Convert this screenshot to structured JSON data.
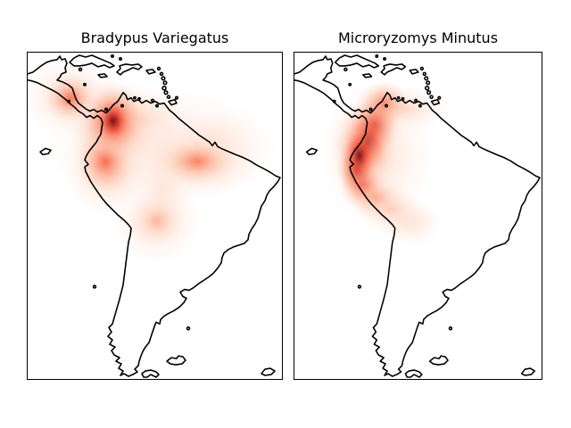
{
  "figure": {
    "background": "#ffffff",
    "subplots": [
      {
        "title": "Bradypus Variegatus"
      },
      {
        "title": "Microryzomys Minutus"
      }
    ]
  },
  "chart_data": [
    {
      "type": "heatmap",
      "title": "Bradypus Variegatus",
      "subtitle": "kernel density estimate of species distribution",
      "colormap": "Reds",
      "region": "Central and South America coastline basemap",
      "extent": {
        "lon": [
          -94.8,
          -34.2
        ],
        "lat": [
          -56.05,
          23.55
        ]
      },
      "xticks": [],
      "yticks": [],
      "legend": "none",
      "density_peaks": [
        {
          "lon": -62.9,
          "lat": 0.8,
          "intensity": 0.1,
          "sx": 16.0,
          "sy": 8.0,
          "note": "broad pale wash over northern South America"
        },
        {
          "lon": -51.2,
          "lat": 1.9,
          "intensity": 0.12,
          "sx": 7.0,
          "sy": 4.5,
          "note": "pale Guianas extension"
        },
        {
          "lon": -68.2,
          "lat": 7.3,
          "intensity": 0.16,
          "sx": 7.0,
          "sy": 4.5,
          "note": "pale wash over Venezuela"
        },
        {
          "lon": -62.5,
          "lat": -9.3,
          "intensity": 0.12,
          "sx": 3.8,
          "sy": 6.5,
          "note": "pale strip south of Amazon"
        },
        {
          "lon": -64.0,
          "lat": -17.5,
          "intensity": 0.15,
          "sx": 6.0,
          "sy": 6.0,
          "note": "halo of Bolivia blob"
        },
        {
          "lon": -64.0,
          "lat": -17.5,
          "intensity": 0.28,
          "sx": 3.6,
          "sy": 3.6,
          "note": "Bolivia lowland blob"
        },
        {
          "lon": -54.4,
          "lat": -3.0,
          "intensity": 0.2,
          "sx": 9.0,
          "sy": 5.0,
          "note": "halo of eastern Amazon blob"
        },
        {
          "lon": -54.4,
          "lat": -3.0,
          "intensity": 0.45,
          "sx": 5.5,
          "sy": 3.4,
          "note": "eastern Amazon blob"
        },
        {
          "lon": -75.7,
          "lat": -4.1,
          "intensity": 0.25,
          "sx": 6.0,
          "sy": 7.0,
          "note": "halo along Colombia-Ecuador Andes"
        },
        {
          "lon": -76.3,
          "lat": -3.0,
          "intensity": 0.52,
          "sx": 4.0,
          "sy": 4.6,
          "note": "Colombia-Ecuador Andes blob"
        },
        {
          "lon": -84.6,
          "lat": 12.7,
          "intensity": 0.18,
          "sx": 6.5,
          "sy": 5.5,
          "note": "Central America pale halo"
        },
        {
          "lon": -84.6,
          "lat": 12.4,
          "intensity": 0.5,
          "sx": 3.6,
          "sy": 3.4,
          "note": "Costa Rica / Nicaragua blob"
        },
        {
          "lon": -74.4,
          "lat": 5.8,
          "intensity": 0.45,
          "sx": 6.0,
          "sy": 6.5,
          "note": "halo around main hotspot"
        },
        {
          "lon": -74.4,
          "lat": 6.9,
          "intensity": 0.75,
          "sx": 4.0,
          "sy": 5.0,
          "note": "inner ring of main hotspot"
        },
        {
          "lon": -74.4,
          "lat": 6.9,
          "intensity": 1.0,
          "sx": 2.4,
          "sy": 3.2,
          "note": "main hotspot, NW Colombia / Panama border"
        }
      ]
    },
    {
      "type": "heatmap",
      "title": "Microryzomys Minutus",
      "subtitle": "kernel density estimate of species distribution",
      "colormap": "Reds",
      "region": "Central and South America coastline basemap",
      "extent": {
        "lon": [
          -94.8,
          -34.2
        ],
        "lat": [
          -56.05,
          23.55
        ]
      },
      "xticks": [],
      "yticks": [],
      "legend": "none",
      "density_peaks": [
        {
          "lon": -74.6,
          "lat": -1.3,
          "intensity": 0.14,
          "sx": 8.0,
          "sy": 9.5,
          "note": "broad pale halo over Andes band"
        },
        {
          "lon": -67.6,
          "lat": 9.9,
          "intensity": 0.16,
          "sx": 6.0,
          "sy": 3.2,
          "note": "pale extension along Venezuela coast"
        },
        {
          "lon": -65.5,
          "lat": -18.4,
          "intensity": 0.08,
          "sx": 4.0,
          "sy": 3.0,
          "note": "tail end, Bolivia"
        },
        {
          "lon": -68.0,
          "lat": -16.9,
          "intensity": 0.13,
          "sx": 4.5,
          "sy": 3.0,
          "note": "tail, SE Peru / Bolivia border"
        },
        {
          "lon": -71.4,
          "lat": -14.5,
          "intensity": 0.22,
          "sx": 4.5,
          "sy": 3.2,
          "note": "tail, southern Peru Andes"
        },
        {
          "lon": -75.0,
          "lat": -11.7,
          "intensity": 0.35,
          "sx": 4.0,
          "sy": 3.2,
          "note": "central Peru Andes"
        },
        {
          "lon": -78.2,
          "lat": -8.5,
          "intensity": 0.6,
          "sx": 3.2,
          "sy": 3.4,
          "note": "northern Peru Andes"
        },
        {
          "lon": -72.9,
          "lat": 11.0,
          "intensity": 0.5,
          "sx": 3.8,
          "sy": 3.4,
          "note": "upper lobe, N Colombia"
        },
        {
          "lon": -75.2,
          "lat": 5.8,
          "intensity": 0.7,
          "sx": 3.6,
          "sy": 4.4,
          "note": "Colombian Andes"
        },
        {
          "lon": -77.8,
          "lat": 0.4,
          "intensity": 0.55,
          "sx": 4.6,
          "sy": 6.5,
          "note": "dark halo Ecuador-Colombia"
        },
        {
          "lon": -76.9,
          "lat": 1.9,
          "intensity": 0.88,
          "sx": 3.0,
          "sy": 4.4,
          "note": "dark band S Colombia"
        },
        {
          "lon": -79.5,
          "lat": -5.0,
          "intensity": 0.85,
          "sx": 2.7,
          "sy": 3.5,
          "note": "dark band NW Peru"
        },
        {
          "lon": -78.9,
          "lat": -1.6,
          "intensity": 1.0,
          "sx": 2.6,
          "sy": 4.0,
          "note": "darkest core, Ecuadorian Andes"
        }
      ]
    }
  ],
  "colors": {
    "coastline": "#000000",
    "axes_edge": "#000000",
    "density_scale": [
      "#fff5f0",
      "#fee0d2",
      "#fcbba1",
      "#fc9272",
      "#fb6a4a",
      "#ef3b2c",
      "#cb181d",
      "#a50f15",
      "#67000d"
    ]
  }
}
